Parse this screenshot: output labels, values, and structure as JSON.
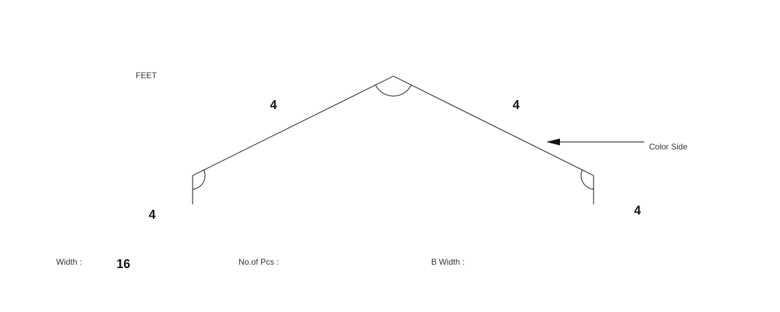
{
  "unit_label": "FEET",
  "segments": {
    "left_leg": "4",
    "left_slope": "4",
    "right_slope": "4",
    "right_leg": "4"
  },
  "color_side_label": "Color Side",
  "fields": {
    "width_label": "Width :",
    "width_value": "16",
    "pcs_label": "No.of Pcs :",
    "b_width_label": "B Width :"
  }
}
